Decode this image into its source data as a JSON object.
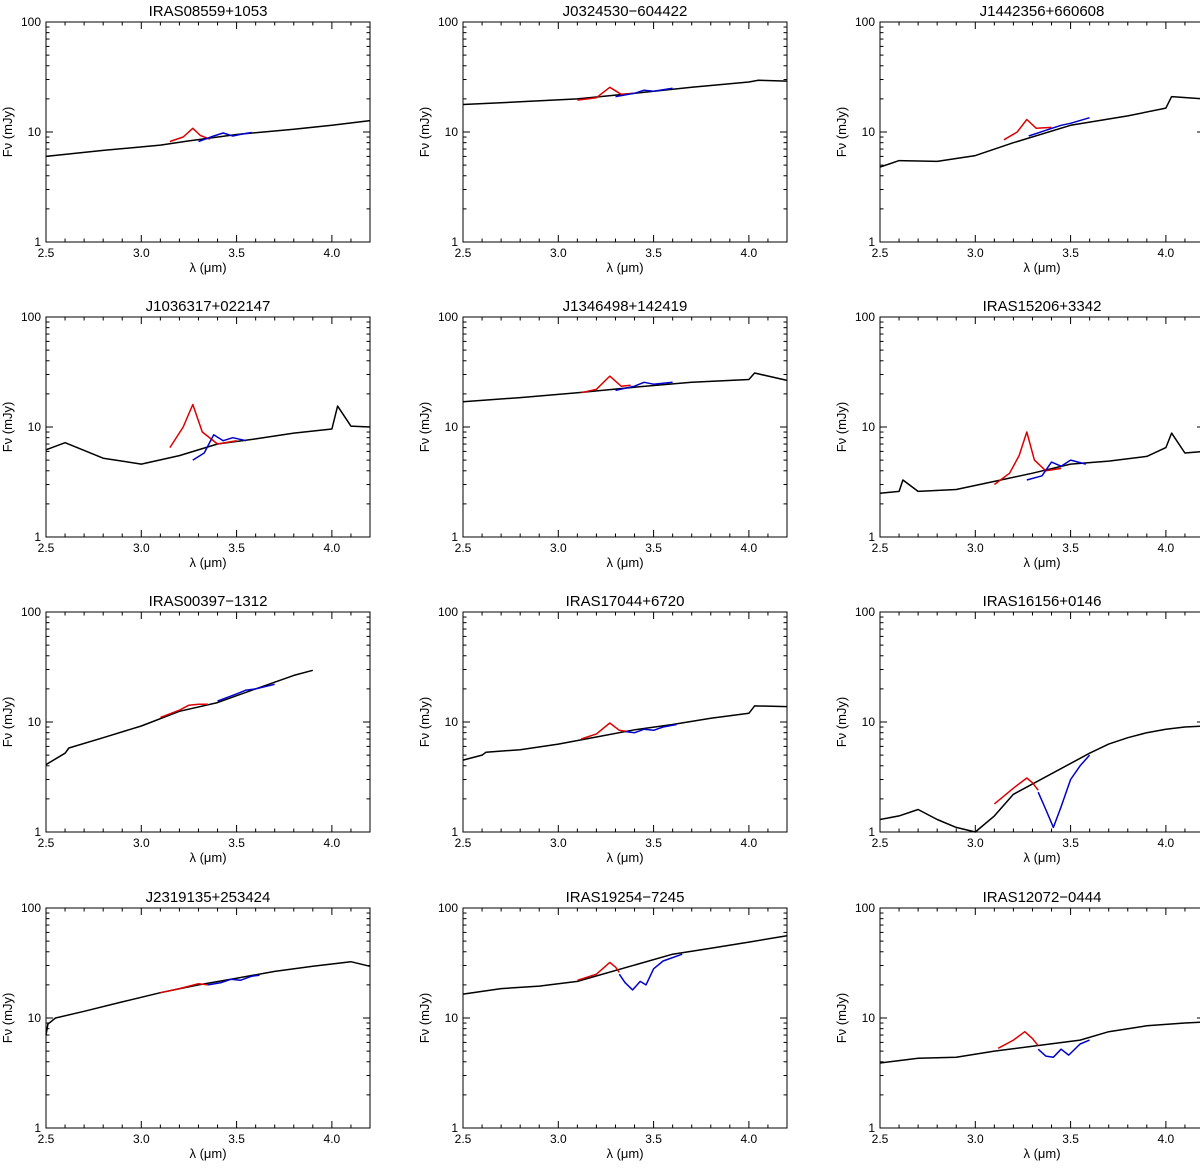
{
  "chart_data": [
    {
      "type": "line",
      "title": "IRAS08559+1053",
      "xlabel": "λ (μm)",
      "ylabel": "Fν (mJy)",
      "xlim": [
        2.5,
        4.2
      ],
      "ylim": [
        1,
        100
      ],
      "yscale": "log",
      "x_ticks": [
        "2.5",
        "3.0",
        "3.5",
        "4.0"
      ],
      "y_ticks": [
        "1",
        "10",
        "100"
      ],
      "series": [
        {
          "color": "#000000",
          "x": [
            2.5,
            2.8,
            3.1,
            3.25,
            3.5,
            3.8,
            4.0,
            4.2
          ],
          "y": [
            6.0,
            6.8,
            7.6,
            8.3,
            9.5,
            10.6,
            11.5,
            12.7
          ]
        },
        {
          "color": "#dd0000",
          "x": [
            3.15,
            3.22,
            3.27,
            3.31,
            3.36
          ],
          "y": [
            8.2,
            9.0,
            10.8,
            9.3,
            8.6
          ]
        },
        {
          "color": "#0000cc",
          "x": [
            3.3,
            3.38,
            3.43,
            3.48,
            3.53,
            3.58
          ],
          "y": [
            8.2,
            9.2,
            9.8,
            9.2,
            9.6,
            9.9
          ]
        }
      ]
    },
    {
      "type": "line",
      "title": "J0324530−604422",
      "xlabel": "λ (μm)",
      "ylabel": "Fν (mJy)",
      "xlim": [
        2.5,
        4.2
      ],
      "ylim": [
        1,
        100
      ],
      "yscale": "log",
      "x_ticks": [
        "2.5",
        "3.0",
        "3.5",
        "4.0"
      ],
      "y_ticks": [
        "1",
        "10",
        "100"
      ],
      "series": [
        {
          "color": "#000000",
          "x": [
            2.5,
            2.8,
            3.1,
            3.4,
            3.7,
            4.0,
            4.05,
            4.2
          ],
          "y": [
            17.8,
            18.8,
            20.0,
            22.5,
            25.5,
            28.5,
            29.5,
            29.0
          ]
        },
        {
          "color": "#dd0000",
          "x": [
            3.1,
            3.2,
            3.27,
            3.33,
            3.4
          ],
          "y": [
            19.5,
            20.5,
            25.5,
            22.0,
            22.5
          ]
        },
        {
          "color": "#0000cc",
          "x": [
            3.3,
            3.4,
            3.45,
            3.5,
            3.6
          ],
          "y": [
            21.0,
            22.5,
            24.0,
            23.5,
            25.0
          ]
        }
      ]
    },
    {
      "type": "line",
      "title": "J1442356+660608",
      "xlabel": "λ (μm)",
      "ylabel": "Fν (mJy)",
      "xlim": [
        2.5,
        4.2
      ],
      "ylim": [
        1,
        100
      ],
      "yscale": "log",
      "x_ticks": [
        "2.5",
        "3.0",
        "3.5",
        "4.0"
      ],
      "y_ticks": [
        "1",
        "10",
        "100"
      ],
      "series": [
        {
          "color": "#000000",
          "x": [
            2.5,
            2.6,
            2.8,
            3.0,
            3.2,
            3.5,
            3.8,
            4.0,
            4.03,
            4.2
          ],
          "y": [
            4.8,
            5.5,
            5.4,
            6.1,
            8.0,
            11.5,
            14.0,
            16.5,
            21.0,
            20.0
          ]
        },
        {
          "color": "#dd0000",
          "x": [
            3.15,
            3.22,
            3.27,
            3.32,
            3.4
          ],
          "y": [
            8.5,
            10.0,
            13.0,
            10.8,
            11.0
          ]
        },
        {
          "color": "#0000cc",
          "x": [
            3.28,
            3.38,
            3.45,
            3.5,
            3.6
          ],
          "y": [
            9.2,
            10.5,
            11.5,
            12.0,
            13.5
          ]
        }
      ]
    },
    {
      "type": "line",
      "title": "J1036317+022147",
      "xlabel": "λ (μm)",
      "ylabel": "Fν (mJy)",
      "xlim": [
        2.5,
        4.2
      ],
      "ylim": [
        1,
        100
      ],
      "yscale": "log",
      "x_ticks": [
        "2.5",
        "3.0",
        "3.5",
        "4.0"
      ],
      "y_ticks": [
        "1",
        "10",
        "100"
      ],
      "series": [
        {
          "color": "#000000",
          "x": [
            2.5,
            2.6,
            2.8,
            3.0,
            3.2,
            3.4,
            3.6,
            3.8,
            4.0,
            4.03,
            4.1,
            4.2
          ],
          "y": [
            6.2,
            7.2,
            5.2,
            4.6,
            5.5,
            7.0,
            7.8,
            8.8,
            9.6,
            15.5,
            10.2,
            10.0
          ]
        },
        {
          "color": "#dd0000",
          "x": [
            3.15,
            3.22,
            3.27,
            3.32,
            3.4,
            3.5
          ],
          "y": [
            6.5,
            10.0,
            16.0,
            9.0,
            7.0,
            7.5
          ]
        },
        {
          "color": "#0000cc",
          "x": [
            3.27,
            3.33,
            3.38,
            3.43,
            3.48,
            3.55
          ],
          "y": [
            5.0,
            5.8,
            8.5,
            7.5,
            8.0,
            7.5
          ]
        }
      ]
    },
    {
      "type": "line",
      "title": "J1346498+142419",
      "xlabel": "λ (μm)",
      "ylabel": "Fν (mJy)",
      "xlim": [
        2.5,
        4.2
      ],
      "ylim": [
        1,
        100
      ],
      "yscale": "log",
      "x_ticks": [
        "2.5",
        "3.0",
        "3.5",
        "4.0"
      ],
      "y_ticks": [
        "1",
        "10",
        "100"
      ],
      "series": [
        {
          "color": "#000000",
          "x": [
            2.5,
            2.8,
            3.1,
            3.4,
            3.7,
            4.0,
            4.03,
            4.2
          ],
          "y": [
            17.0,
            18.5,
            20.5,
            23.0,
            25.5,
            27.0,
            31.0,
            26.5
          ]
        },
        {
          "color": "#dd0000",
          "x": [
            3.12,
            3.2,
            3.27,
            3.33,
            3.38
          ],
          "y": [
            20.5,
            22.0,
            29.0,
            23.5,
            24.0
          ]
        },
        {
          "color": "#0000cc",
          "x": [
            3.3,
            3.4,
            3.45,
            3.5,
            3.6
          ],
          "y": [
            21.5,
            23.5,
            25.5,
            24.5,
            25.5
          ]
        }
      ]
    },
    {
      "type": "line",
      "title": "IRAS15206+3342",
      "xlabel": "λ (μm)",
      "ylabel": "Fν (mJy)",
      "xlim": [
        2.5,
        4.2
      ],
      "ylim": [
        1,
        100
      ],
      "yscale": "log",
      "x_ticks": [
        "2.5",
        "3.0",
        "3.5",
        "4.0"
      ],
      "y_ticks": [
        "1",
        "10",
        "100"
      ],
      "series": [
        {
          "color": "#000000",
          "x": [
            2.5,
            2.6,
            2.62,
            2.7,
            2.9,
            3.1,
            3.3,
            3.5,
            3.7,
            3.9,
            4.0,
            4.03,
            4.1,
            4.2
          ],
          "y": [
            2.5,
            2.6,
            3.3,
            2.6,
            2.7,
            3.2,
            3.8,
            4.6,
            4.9,
            5.4,
            6.5,
            8.8,
            5.8,
            6.0
          ]
        },
        {
          "color": "#dd0000",
          "x": [
            3.1,
            3.18,
            3.23,
            3.27,
            3.31,
            3.37,
            3.45
          ],
          "y": [
            3.0,
            3.8,
            5.5,
            9.0,
            5.0,
            4.0,
            4.2
          ]
        },
        {
          "color": "#0000cc",
          "x": [
            3.27,
            3.35,
            3.4,
            3.45,
            3.5,
            3.58
          ],
          "y": [
            3.3,
            3.6,
            4.8,
            4.4,
            5.0,
            4.6
          ]
        }
      ]
    },
    {
      "type": "line",
      "title": "IRAS00397−1312",
      "xlabel": "λ (μm)",
      "ylabel": "Fν (mJy)",
      "xlim": [
        2.5,
        4.2
      ],
      "ylim": [
        1,
        100
      ],
      "yscale": "log",
      "x_ticks": [
        "2.5",
        "3.0",
        "3.5",
        "4.0"
      ],
      "y_ticks": [
        "1",
        "10",
        "100"
      ],
      "series": [
        {
          "color": "#000000",
          "x": [
            2.5,
            2.6,
            2.62,
            2.8,
            3.0,
            3.2,
            3.4,
            3.6,
            3.8,
            3.9
          ],
          "y": [
            4.1,
            5.2,
            5.8,
            7.2,
            9.2,
            12.5,
            15.0,
            20.0,
            26.5,
            29.5
          ]
        },
        {
          "color": "#dd0000",
          "x": [
            3.1,
            3.2,
            3.25,
            3.3,
            3.35
          ],
          "y": [
            11.0,
            12.8,
            14.2,
            14.5,
            14.5
          ]
        },
        {
          "color": "#0000cc",
          "x": [
            3.4,
            3.5,
            3.55,
            3.6,
            3.7
          ],
          "y": [
            15.5,
            18.0,
            19.5,
            20.0,
            22.0
          ]
        }
      ]
    },
    {
      "type": "line",
      "title": "IRAS17044+6720",
      "xlabel": "λ (μm)",
      "ylabel": "Fν (mJy)",
      "xlim": [
        2.5,
        4.2
      ],
      "ylim": [
        1,
        100
      ],
      "yscale": "log",
      "x_ticks": [
        "2.5",
        "3.0",
        "3.5",
        "4.0"
      ],
      "y_ticks": [
        "1",
        "10",
        "100"
      ],
      "series": [
        {
          "color": "#000000",
          "x": [
            2.5,
            2.6,
            2.62,
            2.8,
            3.0,
            3.2,
            3.4,
            3.6,
            3.8,
            4.0,
            4.03,
            4.2
          ],
          "y": [
            4.5,
            5.0,
            5.3,
            5.6,
            6.3,
            7.3,
            8.5,
            9.5,
            10.8,
            12.0,
            14.0,
            13.8
          ]
        },
        {
          "color": "#dd0000",
          "x": [
            3.12,
            3.2,
            3.27,
            3.32,
            3.36
          ],
          "y": [
            7.0,
            7.8,
            9.8,
            8.4,
            8.2
          ]
        },
        {
          "color": "#0000cc",
          "x": [
            3.35,
            3.4,
            3.45,
            3.5,
            3.55,
            3.62
          ],
          "y": [
            8.2,
            8.0,
            8.6,
            8.4,
            9.0,
            9.5
          ]
        }
      ]
    },
    {
      "type": "line",
      "title": "IRAS16156+0146",
      "xlabel": "λ (μm)",
      "ylabel": "Fν (mJy)",
      "xlim": [
        2.5,
        4.2
      ],
      "ylim": [
        1,
        100
      ],
      "yscale": "log",
      "x_ticks": [
        "2.5",
        "3.0",
        "3.5",
        "4.0"
      ],
      "y_ticks": [
        "1",
        "10",
        "100"
      ],
      "series": [
        {
          "color": "#000000",
          "x": [
            2.5,
            2.6,
            2.7,
            2.8,
            2.9,
            3.0,
            3.1,
            3.2,
            3.6,
            3.7,
            3.8,
            3.9,
            4.0,
            4.1,
            4.2
          ],
          "y": [
            1.3,
            1.4,
            1.6,
            1.3,
            1.1,
            1.0,
            1.4,
            2.2,
            5.2,
            6.3,
            7.2,
            8.0,
            8.6,
            9.0,
            9.2
          ]
        },
        {
          "color": "#dd0000",
          "x": [
            3.1,
            3.2,
            3.27,
            3.3,
            3.33
          ],
          "y": [
            1.8,
            2.5,
            3.1,
            2.8,
            2.4
          ]
        },
        {
          "color": "#0000cc",
          "x": [
            3.33,
            3.37,
            3.41,
            3.45,
            3.5,
            3.55,
            3.6
          ],
          "y": [
            2.3,
            1.6,
            1.1,
            1.7,
            3.0,
            4.0,
            5.0
          ]
        }
      ]
    },
    {
      "type": "line",
      "title": "J2319135+253424",
      "xlabel": "λ (μm)",
      "ylabel": "Fν (mJy)",
      "xlim": [
        2.5,
        4.2
      ],
      "ylim": [
        1,
        100
      ],
      "yscale": "log",
      "x_ticks": [
        "2.5",
        "3.0",
        "3.5",
        "4.0"
      ],
      "y_ticks": [
        "1",
        "10",
        "100"
      ],
      "series": [
        {
          "color": "#000000",
          "x": [
            2.5,
            2.51,
            2.55,
            2.7,
            2.9,
            3.1,
            3.3,
            3.5,
            3.7,
            3.9,
            4.1,
            4.2
          ],
          "y": [
            7.0,
            8.8,
            10.0,
            11.5,
            14.0,
            17.0,
            20.0,
            23.0,
            26.5,
            29.5,
            32.5,
            29.5
          ]
        },
        {
          "color": "#dd0000",
          "x": [
            3.1,
            3.2,
            3.3,
            3.35
          ],
          "y": [
            17.0,
            18.5,
            20.5,
            20.0
          ]
        },
        {
          "color": "#0000cc",
          "x": [
            3.35,
            3.42,
            3.47,
            3.52,
            3.58,
            3.62
          ],
          "y": [
            20.0,
            21.0,
            22.5,
            22.0,
            24.0,
            24.5
          ]
        }
      ]
    },
    {
      "type": "line",
      "title": "IRAS19254−7245",
      "xlabel": "λ (μm)",
      "ylabel": "Fν (mJy)",
      "xlim": [
        2.5,
        4.2
      ],
      "ylim": [
        1,
        100
      ],
      "yscale": "log",
      "x_ticks": [
        "2.5",
        "3.0",
        "3.5",
        "4.0"
      ],
      "y_ticks": [
        "1",
        "10",
        "100"
      ],
      "series": [
        {
          "color": "#000000",
          "x": [
            2.5,
            2.7,
            2.9,
            3.1,
            3.6,
            3.8,
            4.0,
            4.2
          ],
          "y": [
            16.5,
            18.5,
            19.5,
            21.5,
            38.0,
            43.0,
            49.0,
            56.0
          ]
        },
        {
          "color": "#dd0000",
          "x": [
            3.1,
            3.2,
            3.27,
            3.3,
            3.32
          ],
          "y": [
            22.0,
            25.0,
            32.0,
            29.0,
            26.0
          ]
        },
        {
          "color": "#0000cc",
          "x": [
            3.32,
            3.35,
            3.39,
            3.43,
            3.46,
            3.5,
            3.55,
            3.65
          ],
          "y": [
            25.0,
            21.0,
            18.0,
            21.5,
            20.0,
            28.0,
            33.0,
            38.0
          ]
        }
      ]
    },
    {
      "type": "line",
      "title": "IRAS12072−0444",
      "xlabel": "λ (μm)",
      "ylabel": "Fν (mJy)",
      "xlim": [
        2.5,
        4.2
      ],
      "ylim": [
        1,
        100
      ],
      "yscale": "log",
      "x_ticks": [
        "2.5",
        "3.0",
        "3.5",
        "4.0"
      ],
      "y_ticks": [
        "1",
        "10",
        "100"
      ],
      "series": [
        {
          "color": "#000000",
          "x": [
            2.5,
            2.6,
            2.7,
            2.9,
            3.1,
            3.55,
            3.7,
            3.9,
            4.1,
            4.2
          ],
          "y": [
            3.9,
            4.1,
            4.3,
            4.4,
            5.0,
            6.3,
            7.5,
            8.5,
            9.0,
            9.2
          ]
        },
        {
          "color": "#dd0000",
          "x": [
            3.12,
            3.2,
            3.26,
            3.3,
            3.33
          ],
          "y": [
            5.3,
            6.3,
            7.5,
            6.5,
            5.6
          ]
        },
        {
          "color": "#0000cc",
          "x": [
            3.33,
            3.37,
            3.41,
            3.45,
            3.49,
            3.55,
            3.6
          ],
          "y": [
            5.2,
            4.5,
            4.4,
            5.2,
            4.6,
            5.8,
            6.3
          ]
        }
      ]
    }
  ]
}
